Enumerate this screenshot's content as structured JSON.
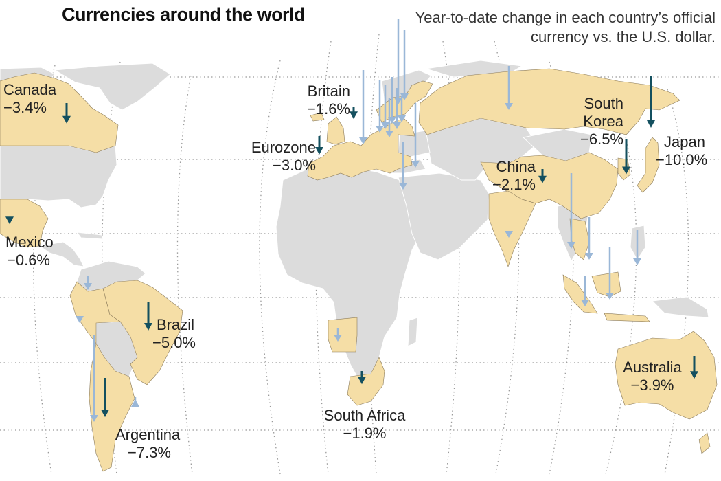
{
  "title": "Currencies around the world",
  "subtitle": "Year-to-date change in each country’s official currency vs. the U.S. dollar.",
  "colors": {
    "highlight_land": "#f5dea6",
    "other_land": "#dcdcdc",
    "major_arrow": "#14505f",
    "minor_arrow": "#9ab7d7",
    "grid": "#9a9a9a"
  },
  "countries": [
    {
      "id": "canada",
      "name": "Canada",
      "change": "−3.4%",
      "value": -3.4
    },
    {
      "id": "mexico",
      "name": "Mexico",
      "change": "−0.6%",
      "value": -0.6
    },
    {
      "id": "brazil",
      "name": "Brazil",
      "change": "−5.0%",
      "value": -5.0
    },
    {
      "id": "argentina",
      "name": "Argentina",
      "change": "−7.3%",
      "value": -7.3
    },
    {
      "id": "britain",
      "name": "Britain",
      "change": "−1.6%",
      "value": -1.6
    },
    {
      "id": "eurozone",
      "name": "Eurozone",
      "change": "−3.0%",
      "value": -3.0
    },
    {
      "id": "south_africa",
      "name": "South Africa",
      "change": "−1.9%",
      "value": -1.9
    },
    {
      "id": "china",
      "name": "China",
      "change": "−2.1%",
      "value": -2.1
    },
    {
      "id": "south_korea",
      "name_line1": "South",
      "name_line2": "Korea",
      "change": "−6.5%",
      "value": -6.5
    },
    {
      "id": "japan",
      "name": "Japan",
      "change": "−10.0%",
      "value": -10.0
    },
    {
      "id": "australia",
      "name": "Australia",
      "change": "−3.9%",
      "value": -3.9
    }
  ]
}
